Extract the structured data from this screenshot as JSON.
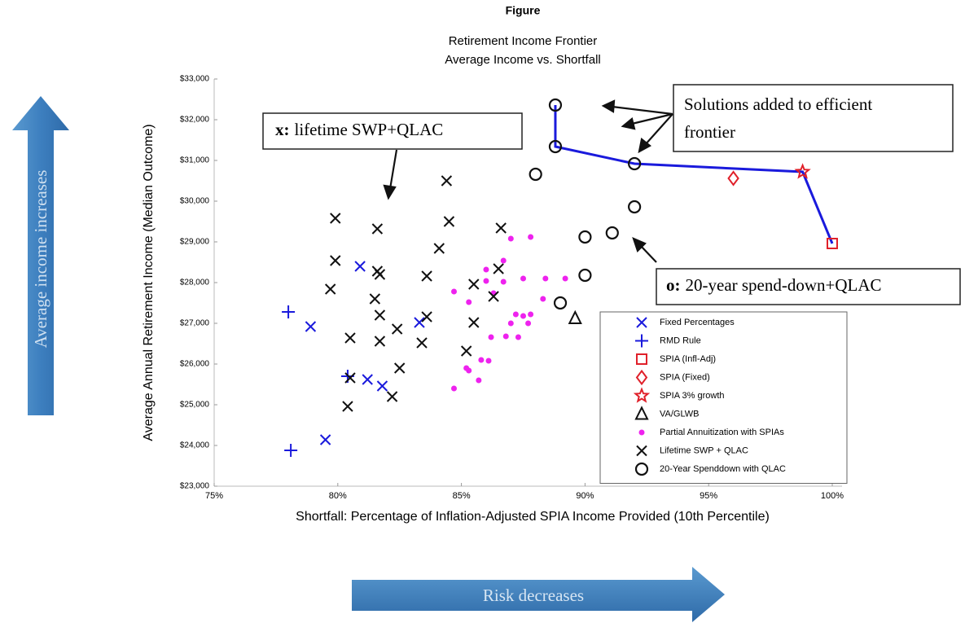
{
  "chart_data": {
    "type": "scatter",
    "title": "Figure",
    "subtitle": [
      "Retirement Income Frontier",
      "Average Income vs. Shortfall"
    ],
    "x_label": "Shortfall: Percentage of Inflation-Adjusted SPIA Income Provided (10th Percentile)",
    "y_label": "Average Annual Retirement Income (Median Outcome)",
    "xlim": [
      75,
      100
    ],
    "xticks": [
      {
        "value": 75,
        "label": "75%"
      },
      {
        "value": 80,
        "label": "80%"
      },
      {
        "value": 85,
        "label": "85%"
      },
      {
        "value": 90,
        "label": "90%"
      },
      {
        "value": 95,
        "label": "95%"
      },
      {
        "value": 100,
        "label": "100%"
      }
    ],
    "ylim": [
      23000,
      33000
    ],
    "yticks": [
      {
        "value": 23000,
        "label": "$23,000"
      },
      {
        "value": 24000,
        "label": "$24,000"
      },
      {
        "value": 25000,
        "label": "$25,000"
      },
      {
        "value": 26000,
        "label": "$26,000"
      },
      {
        "value": 27000,
        "label": "$27,000"
      },
      {
        "value": 28000,
        "label": "$28,000"
      },
      {
        "value": 29000,
        "label": "$29,000"
      },
      {
        "value": 30000,
        "label": "$30,000"
      },
      {
        "value": 31000,
        "label": "$31,000"
      },
      {
        "value": 32000,
        "label": "$32,000"
      },
      {
        "value": 33000,
        "label": "$33,000"
      }
    ],
    "legend": "lower right",
    "series": [
      {
        "name": "Fixed Percentages",
        "color": "#1a1adc",
        "marker": "x",
        "x": [
          80.9,
          78.9,
          81.2,
          81.8,
          79.5,
          83.3
        ],
        "y": [
          28400,
          26920,
          25620,
          25460,
          24140,
          27020
        ]
      },
      {
        "name": "RMD Rule",
        "color": "#1a1adc",
        "marker": "plus",
        "x": [
          78.0,
          78.1,
          80.4
        ],
        "y": [
          27280,
          23880,
          25700
        ]
      },
      {
        "name": "SPIA (Infl-Adj)",
        "color": "#e0202a",
        "marker": "square",
        "x": [
          100.0
        ],
        "y": [
          28960
        ]
      },
      {
        "name": "SPIA (Fixed)",
        "color": "#e0202a",
        "marker": "diamond",
        "x": [
          96.0
        ],
        "y": [
          30560
        ]
      },
      {
        "name": "SPIA 3% growth",
        "color": "#e0202a",
        "marker": "star",
        "x": [
          98.8
        ],
        "y": [
          30720
        ]
      },
      {
        "name": "VA/GLWB",
        "color": "#111111",
        "marker": "triangle",
        "x": [
          89.6
        ],
        "y": [
          27120
        ]
      },
      {
        "name": "Partial Annuitization with SPIAs",
        "color": "#ee22ee",
        "marker": "dot",
        "x": [
          87.0,
          87.8,
          86.7,
          86.0,
          86.0,
          86.7,
          87.5,
          88.4,
          89.2,
          84.7,
          85.3,
          86.3,
          88.3,
          87.2,
          87.5,
          87.8,
          87.0,
          87.7,
          86.8,
          87.3,
          86.2,
          85.8,
          86.1,
          85.2,
          85.3,
          85.7,
          84.7
        ],
        "y": [
          29080,
          29120,
          28540,
          28320,
          28040,
          28020,
          28100,
          28100,
          28100,
          27780,
          27520,
          27740,
          27600,
          27220,
          27180,
          27220,
          27000,
          27000,
          26680,
          26660,
          26660,
          26100,
          26080,
          25900,
          25840,
          25600,
          25400
        ]
      },
      {
        "name": "Lifetime SWP + QLAC",
        "color": "#111111",
        "marker": "x",
        "x": [
          84.4,
          79.9,
          81.6,
          84.5,
          86.6,
          84.1,
          79.9,
          81.6,
          81.7,
          83.6,
          86.5,
          85.5,
          79.7,
          81.5,
          86.3,
          81.7,
          83.6,
          85.5,
          80.5,
          82.4,
          81.7,
          83.4,
          85.2,
          82.5,
          80.5,
          82.2,
          80.4
        ],
        "y": [
          30500,
          29580,
          29320,
          29500,
          29340,
          28840,
          28540,
          28280,
          28200,
          28160,
          28340,
          27960,
          27840,
          27600,
          27660,
          27200,
          27160,
          27020,
          26640,
          26860,
          26560,
          26520,
          26320,
          25900,
          25660,
          25200,
          24960
        ]
      },
      {
        "name": "20-Year Spenddown with QLAC",
        "color": "#111111",
        "marker": "circle",
        "x": [
          88.8,
          88.8,
          92.0,
          88.0,
          92.0,
          90.0,
          91.1,
          90.0,
          89.0
        ],
        "y": [
          32360,
          31340,
          30920,
          30660,
          29860,
          29120,
          29220,
          28180,
          27500
        ]
      }
    ],
    "frontier": {
      "color": "#1a1adc",
      "x": [
        88.8,
        88.8,
        92.0,
        98.8,
        100.0
      ],
      "y": [
        32360,
        31340,
        30920,
        30720,
        28960
      ]
    },
    "annotations": {
      "swp": {
        "bold": "x:",
        "text": "lifetime SWP+QLAC"
      },
      "solutions": [
        "Solutions added to efficient",
        "frontier"
      ],
      "spend": {
        "bold": "o:",
        "text": "20-year spend-down+QLAC"
      },
      "income_arrow": "Average income increases",
      "risk_arrow": "Risk decreases"
    }
  }
}
